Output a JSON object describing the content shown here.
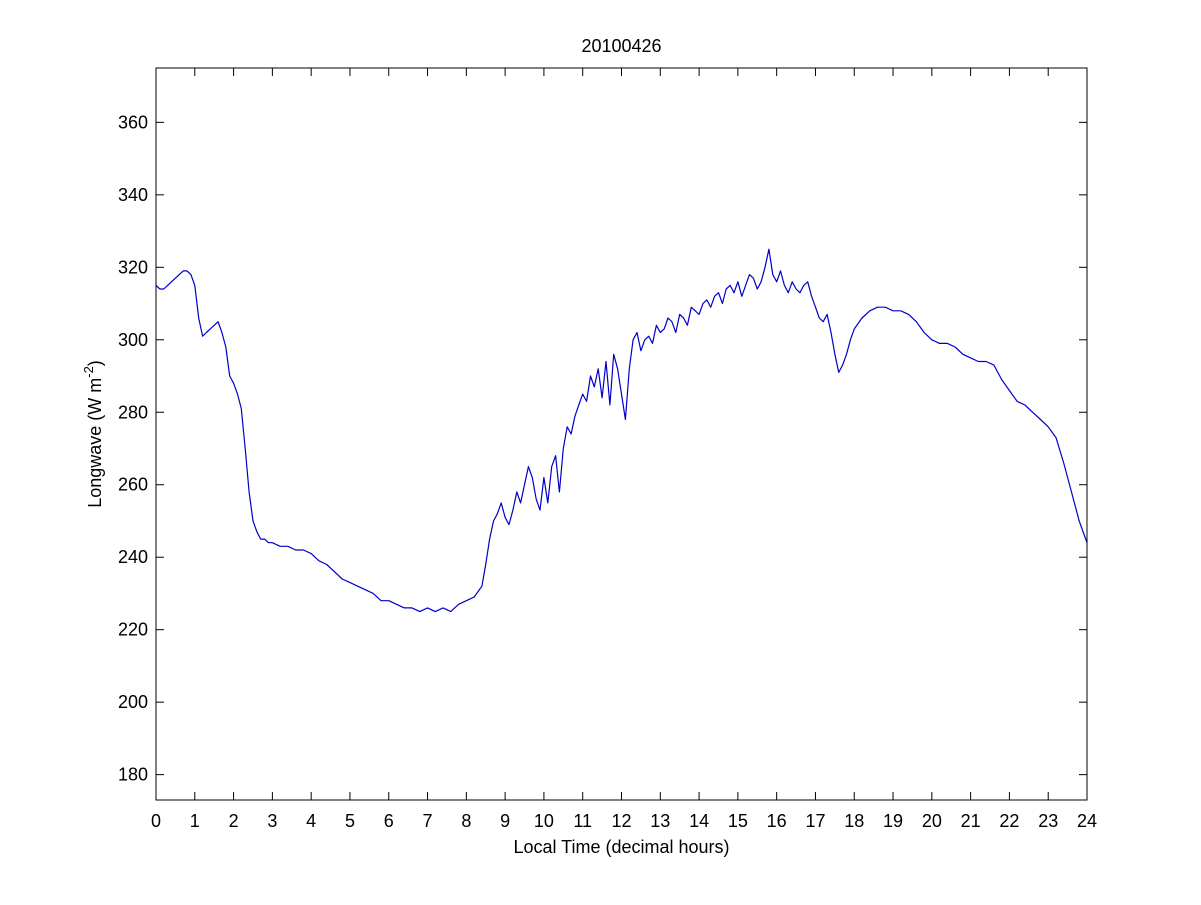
{
  "chart_data": {
    "type": "line",
    "title": "20100426",
    "xlabel": "Local Time (decimal hours)",
    "ylabel_main": "Longwave (W m",
    "ylabel_sup": "-2",
    "ylabel_close": ")",
    "xlim": [
      0,
      24
    ],
    "ylim": [
      173,
      375
    ],
    "xticks": [
      0,
      1,
      2,
      3,
      4,
      5,
      6,
      7,
      8,
      9,
      10,
      11,
      12,
      13,
      14,
      15,
      16,
      17,
      18,
      19,
      20,
      21,
      22,
      23,
      24
    ],
    "yticks": [
      180,
      200,
      220,
      240,
      260,
      280,
      300,
      320,
      340,
      360
    ],
    "grid": false,
    "line_color": "#0000c8",
    "series": [
      {
        "x": [
          0,
          0.1,
          0.2,
          0.3,
          0.4,
          0.5,
          0.6,
          0.7,
          0.8,
          0.9,
          1.0,
          1.1,
          1.2,
          1.3,
          1.4,
          1.5,
          1.6,
          1.7,
          1.8,
          1.9,
          2.0,
          2.1,
          2.2,
          2.3,
          2.4,
          2.5,
          2.6,
          2.7,
          2.8,
          2.9,
          3.0,
          3.2,
          3.4,
          3.6,
          3.8,
          4.0,
          4.2,
          4.4,
          4.6,
          4.8,
          5.0,
          5.2,
          5.4,
          5.6,
          5.8,
          6.0,
          6.2,
          6.4,
          6.6,
          6.8,
          7.0,
          7.2,
          7.4,
          7.6,
          7.8,
          8.0,
          8.2,
          8.4,
          8.5,
          8.6,
          8.7,
          8.8,
          8.9,
          9.0,
          9.1,
          9.2,
          9.3,
          9.4,
          9.5,
          9.6,
          9.7,
          9.8,
          9.9,
          10.0,
          10.1,
          10.2,
          10.3,
          10.4,
          10.5,
          10.6,
          10.7,
          10.8,
          10.9,
          11.0,
          11.1,
          11.2,
          11.3,
          11.4,
          11.5,
          11.6,
          11.7,
          11.8,
          11.9,
          12.0,
          12.1,
          12.2,
          12.3,
          12.4,
          12.5,
          12.6,
          12.7,
          12.8,
          12.9,
          13.0,
          13.1,
          13.2,
          13.3,
          13.4,
          13.5,
          13.6,
          13.7,
          13.8,
          13.9,
          14.0,
          14.1,
          14.2,
          14.3,
          14.4,
          14.5,
          14.6,
          14.7,
          14.8,
          14.9,
          15.0,
          15.1,
          15.2,
          15.3,
          15.4,
          15.5,
          15.6,
          15.7,
          15.8,
          15.9,
          16.0,
          16.1,
          16.2,
          16.3,
          16.4,
          16.5,
          16.6,
          16.7,
          16.8,
          16.9,
          17.0,
          17.1,
          17.2,
          17.3,
          17.4,
          17.5,
          17.6,
          17.7,
          17.8,
          17.9,
          18.0,
          18.2,
          18.4,
          18.6,
          18.8,
          19.0,
          19.2,
          19.4,
          19.6,
          19.8,
          20.0,
          20.2,
          20.4,
          20.6,
          20.8,
          21.0,
          21.2,
          21.4,
          21.6,
          21.8,
          22.0,
          22.2,
          22.4,
          22.6,
          22.8,
          23.0,
          23.2,
          23.4,
          23.6,
          23.8,
          24.0
        ],
        "y": [
          315,
          314,
          314,
          315,
          316,
          317,
          318,
          319,
          319,
          318,
          315,
          306,
          301,
          302,
          303,
          304,
          305,
          302,
          298,
          290,
          288,
          285,
          281,
          270,
          258,
          250,
          247,
          245,
          245,
          244,
          244,
          243,
          243,
          242,
          242,
          241,
          239,
          238,
          236,
          234,
          233,
          232,
          231,
          230,
          228,
          228,
          227,
          226,
          226,
          225,
          226,
          225,
          226,
          225,
          227,
          228,
          229,
          232,
          238,
          245,
          250,
          252,
          255,
          251,
          249,
          253,
          258,
          255,
          260,
          265,
          262,
          256,
          253,
          262,
          255,
          265,
          268,
          258,
          270,
          276,
          274,
          279,
          282,
          285,
          283,
          290,
          287,
          292,
          284,
          294,
          282,
          296,
          292,
          285,
          278,
          292,
          300,
          302,
          297,
          300,
          301,
          299,
          304,
          302,
          303,
          306,
          305,
          302,
          307,
          306,
          304,
          309,
          308,
          307,
          310,
          311,
          309,
          312,
          313,
          310,
          314,
          315,
          313,
          316,
          312,
          315,
          318,
          317,
          314,
          316,
          320,
          325,
          318,
          316,
          319,
          315,
          313,
          316,
          314,
          313,
          315,
          316,
          312,
          309,
          306,
          305,
          307,
          302,
          296,
          291,
          293,
          296,
          300,
          303,
          306,
          308,
          309,
          309,
          308,
          308,
          307,
          305,
          302,
          300,
          299,
          299,
          298,
          296,
          295,
          294,
          294,
          293,
          289,
          286,
          283,
          282,
          280,
          278,
          276,
          273,
          266,
          258,
          250,
          244
        ]
      }
    ]
  }
}
